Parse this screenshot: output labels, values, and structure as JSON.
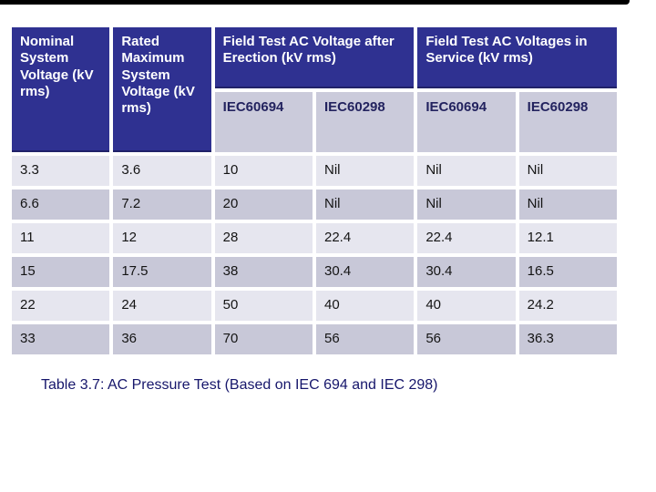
{
  "slide": {
    "caption": "Table 3.7: AC Pressure Test (Based on IEC 694 and IEC 298)"
  },
  "colors": {
    "header_blue": "#2f3191",
    "subheader_gray": "#cbcbdb",
    "row_light": "#e6e6ef",
    "row_dark": "#c8c8d8",
    "header_text": "#ffffff",
    "subheader_text": "#23235f",
    "body_text": "#141414",
    "caption_text": "#16166b"
  },
  "table": {
    "header": {
      "col1": "Nominal System Voltage (kV rms)",
      "col2": "Rated Maximum System Voltage (kV rms)",
      "group1": "Field Test AC Voltage after Erection (kV rms)",
      "group2": "Field Test AC Voltages in Service (kV rms)",
      "sub1": "IEC60694",
      "sub2": "IEC60298",
      "sub3": "IEC60694",
      "sub4": "IEC60298"
    },
    "rows": [
      {
        "c1": "3.3",
        "c2": "3.6",
        "c3": "10",
        "c4": "Nil",
        "c5": "Nil",
        "c6": "Nil"
      },
      {
        "c1": "6.6",
        "c2": "7.2",
        "c3": "20",
        "c4": "Nil",
        "c5": "Nil",
        "c6": "Nil"
      },
      {
        "c1": "11",
        "c2": "12",
        "c3": "28",
        "c4": "22.4",
        "c5": "22.4",
        "c6": "12.1"
      },
      {
        "c1": "15",
        "c2": "17.5",
        "c3": "38",
        "c4": "30.4",
        "c5": "30.4",
        "c6": "16.5"
      },
      {
        "c1": "22",
        "c2": "24",
        "c3": "50",
        "c4": "40",
        "c5": "40",
        "c6": "24.2"
      },
      {
        "c1": "33",
        "c2": "36",
        "c3": "70",
        "c4": "56",
        "c5": "56",
        "c6": "36.3"
      }
    ]
  }
}
